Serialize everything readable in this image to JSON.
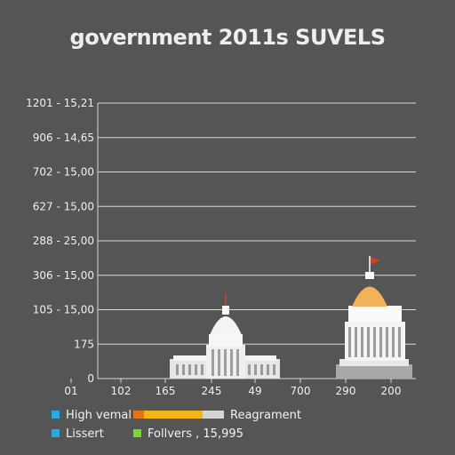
{
  "chart_data": {
    "type": "bar",
    "title": "government 2011s SUVELS",
    "xlabel": "",
    "ylabel": "",
    "y_tick_labels": [
      "0",
      "175",
      "105 - 15,00",
      "306 - 15,00",
      "288 - 25,00",
      "627 - 15,00",
      "702 - 15,00",
      "906 - 14,65",
      "1201 - 15,21"
    ],
    "x_tick_labels": [
      "01",
      "102",
      "165",
      "245",
      "49",
      "700",
      "290",
      "200"
    ],
    "grid": true,
    "legend_position": "bottom",
    "legend": [
      {
        "name": "High vemal",
        "color": "#2aa8e0"
      },
      {
        "name": "Reagrament",
        "color": "#f2b31b"
      },
      {
        "name": "Lissert",
        "color": "#2aa8e0"
      },
      {
        "name": "Follvers , 15,995",
        "color": "#7ed23a"
      }
    ],
    "series_colors": {
      "left_building": "#e8e8e8",
      "right_building": "#f2f2f2",
      "right_dome": "#f2b25a",
      "flag": "#d83a2a"
    }
  }
}
